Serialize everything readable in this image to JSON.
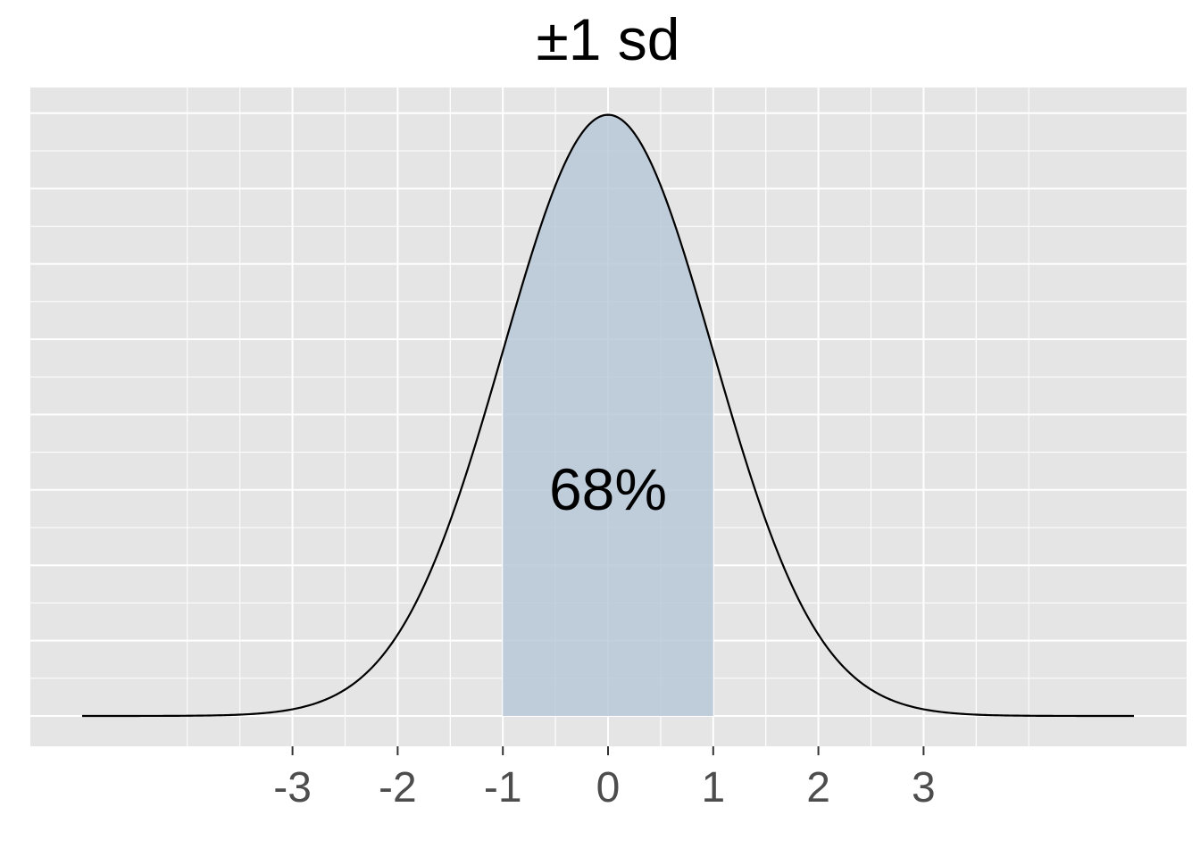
{
  "chart_data": {
    "type": "area",
    "title": "±1 sd",
    "xlabel": "",
    "ylabel": "",
    "xlim": [
      -5,
      5
    ],
    "ylim": [
      -0.02,
      0.419
    ],
    "x_ticks": [
      -3,
      -2,
      -1,
      0,
      1,
      2,
      3
    ],
    "x_tick_labels": [
      "-3",
      "-2",
      "-1",
      "0",
      "1",
      "2",
      "3"
    ],
    "grid": true,
    "legend": "none",
    "series": [
      {
        "kind": "density_curve",
        "distribution": "standard normal",
        "x_range": [
          -5,
          5
        ],
        "color": "#000000"
      }
    ],
    "shaded_region": {
      "from": -1,
      "to": 1,
      "color": "#b8c8d8"
    },
    "annotations": [
      {
        "text": "68%",
        "x": 0,
        "y": 0.15
      }
    ],
    "colors": {
      "panel": "#e5e5e5",
      "grid": "#ffffff",
      "shade": "#b8c8d8",
      "tick_text": "#4d4d4d"
    }
  }
}
